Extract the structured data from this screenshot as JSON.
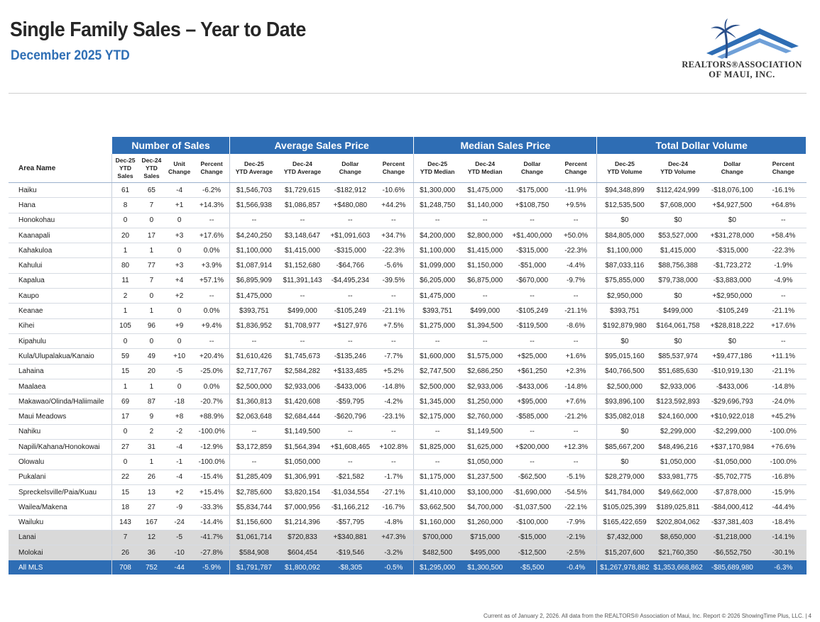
{
  "header": {
    "title": "Single Family Sales – Year to Date",
    "subtitle": "December 2025 YTD"
  },
  "logo": {
    "line1": "REALTORS®ASSOCIATION",
    "line2": "OF MAUI, INC.",
    "colors": {
      "roof": "#2e6db4",
      "palm": "#2a4f8a"
    }
  },
  "table": {
    "groups": [
      "Number of Sales",
      "Average Sales Price",
      "Median Sales Price",
      "Total Dollar Volume"
    ],
    "area_header": "Area Name",
    "columns": [
      "Dec-25 YTD Sales",
      "Dec-24 YTD Sales",
      "Unit Change",
      "Percent Change",
      "Dec-25 YTD Average",
      "Dec-24 YTD Average",
      "Dollar Change",
      "Percent Change",
      "Dec-25 YTD Median",
      "Dec-24 YTD Median",
      "Dollar Change",
      "Percent Change",
      "Dec-25 YTD Volume",
      "Dec-24 YTD Volume",
      "Dollar Change",
      "Percent Change"
    ],
    "rows": [
      {
        "area": "Haiku",
        "cells": [
          "61",
          "65",
          "-4",
          "-6.2%",
          "$1,546,703",
          "$1,729,615",
          "-$182,912",
          "-10.6%",
          "$1,300,000",
          "$1,475,000",
          "-$175,000",
          "-11.9%",
          "$94,348,899",
          "$112,424,999",
          "-$18,076,100",
          "-16.1%"
        ]
      },
      {
        "area": "Hana",
        "cells": [
          "8",
          "7",
          "+1",
          "+14.3%",
          "$1,566,938",
          "$1,086,857",
          "+$480,080",
          "+44.2%",
          "$1,248,750",
          "$1,140,000",
          "+$108,750",
          "+9.5%",
          "$12,535,500",
          "$7,608,000",
          "+$4,927,500",
          "+64.8%"
        ]
      },
      {
        "area": "Honokohau",
        "cells": [
          "0",
          "0",
          "0",
          "--",
          "--",
          "--",
          "--",
          "--",
          "--",
          "--",
          "--",
          "--",
          "$0",
          "$0",
          "$0",
          "--"
        ]
      },
      {
        "area": "Kaanapali",
        "cells": [
          "20",
          "17",
          "+3",
          "+17.6%",
          "$4,240,250",
          "$3,148,647",
          "+$1,091,603",
          "+34.7%",
          "$4,200,000",
          "$2,800,000",
          "+$1,400,000",
          "+50.0%",
          "$84,805,000",
          "$53,527,000",
          "+$31,278,000",
          "+58.4%"
        ]
      },
      {
        "area": "Kahakuloa",
        "cells": [
          "1",
          "1",
          "0",
          "0.0%",
          "$1,100,000",
          "$1,415,000",
          "-$315,000",
          "-22.3%",
          "$1,100,000",
          "$1,415,000",
          "-$315,000",
          "-22.3%",
          "$1,100,000",
          "$1,415,000",
          "-$315,000",
          "-22.3%"
        ]
      },
      {
        "area": "Kahului",
        "cells": [
          "80",
          "77",
          "+3",
          "+3.9%",
          "$1,087,914",
          "$1,152,680",
          "-$64,766",
          "-5.6%",
          "$1,099,000",
          "$1,150,000",
          "-$51,000",
          "-4.4%",
          "$87,033,116",
          "$88,756,388",
          "-$1,723,272",
          "-1.9%"
        ]
      },
      {
        "area": "Kapalua",
        "cells": [
          "11",
          "7",
          "+4",
          "+57.1%",
          "$6,895,909",
          "$11,391,143",
          "-$4,495,234",
          "-39.5%",
          "$6,205,000",
          "$6,875,000",
          "-$670,000",
          "-9.7%",
          "$75,855,000",
          "$79,738,000",
          "-$3,883,000",
          "-4.9%"
        ]
      },
      {
        "area": "Kaupo",
        "cells": [
          "2",
          "0",
          "+2",
          "--",
          "$1,475,000",
          "--",
          "--",
          "--",
          "$1,475,000",
          "--",
          "--",
          "--",
          "$2,950,000",
          "$0",
          "+$2,950,000",
          "--"
        ]
      },
      {
        "area": "Keanae",
        "cells": [
          "1",
          "1",
          "0",
          "0.0%",
          "$393,751",
          "$499,000",
          "-$105,249",
          "-21.1%",
          "$393,751",
          "$499,000",
          "-$105,249",
          "-21.1%",
          "$393,751",
          "$499,000",
          "-$105,249",
          "-21.1%"
        ]
      },
      {
        "area": "Kihei",
        "cells": [
          "105",
          "96",
          "+9",
          "+9.4%",
          "$1,836,952",
          "$1,708,977",
          "+$127,976",
          "+7.5%",
          "$1,275,000",
          "$1,394,500",
          "-$119,500",
          "-8.6%",
          "$192,879,980",
          "$164,061,758",
          "+$28,818,222",
          "+17.6%"
        ]
      },
      {
        "area": "Kipahulu",
        "cells": [
          "0",
          "0",
          "0",
          "--",
          "--",
          "--",
          "--",
          "--",
          "--",
          "--",
          "--",
          "--",
          "$0",
          "$0",
          "$0",
          "--"
        ]
      },
      {
        "area": "Kula/Ulupalakua/Kanaio",
        "cells": [
          "59",
          "49",
          "+10",
          "+20.4%",
          "$1,610,426",
          "$1,745,673",
          "-$135,246",
          "-7.7%",
          "$1,600,000",
          "$1,575,000",
          "+$25,000",
          "+1.6%",
          "$95,015,160",
          "$85,537,974",
          "+$9,477,186",
          "+11.1%"
        ]
      },
      {
        "area": "Lahaina",
        "cells": [
          "15",
          "20",
          "-5",
          "-25.0%",
          "$2,717,767",
          "$2,584,282",
          "+$133,485",
          "+5.2%",
          "$2,747,500",
          "$2,686,250",
          "+$61,250",
          "+2.3%",
          "$40,766,500",
          "$51,685,630",
          "-$10,919,130",
          "-21.1%"
        ]
      },
      {
        "area": "Maalaea",
        "cells": [
          "1",
          "1",
          "0",
          "0.0%",
          "$2,500,000",
          "$2,933,006",
          "-$433,006",
          "-14.8%",
          "$2,500,000",
          "$2,933,006",
          "-$433,006",
          "-14.8%",
          "$2,500,000",
          "$2,933,006",
          "-$433,006",
          "-14.8%"
        ]
      },
      {
        "area": "Makawao/Olinda/Haliimaile",
        "cells": [
          "69",
          "87",
          "-18",
          "-20.7%",
          "$1,360,813",
          "$1,420,608",
          "-$59,795",
          "-4.2%",
          "$1,345,000",
          "$1,250,000",
          "+$95,000",
          "+7.6%",
          "$93,896,100",
          "$123,592,893",
          "-$29,696,793",
          "-24.0%"
        ]
      },
      {
        "area": "Maui Meadows",
        "cells": [
          "17",
          "9",
          "+8",
          "+88.9%",
          "$2,063,648",
          "$2,684,444",
          "-$620,796",
          "-23.1%",
          "$2,175,000",
          "$2,760,000",
          "-$585,000",
          "-21.2%",
          "$35,082,018",
          "$24,160,000",
          "+$10,922,018",
          "+45.2%"
        ]
      },
      {
        "area": "Nahiku",
        "cells": [
          "0",
          "2",
          "-2",
          "-100.0%",
          "--",
          "$1,149,500",
          "--",
          "--",
          "--",
          "$1,149,500",
          "--",
          "--",
          "$0",
          "$2,299,000",
          "-$2,299,000",
          "-100.0%"
        ]
      },
      {
        "area": "Napili/Kahana/Honokowai",
        "cells": [
          "27",
          "31",
          "-4",
          "-12.9%",
          "$3,172,859",
          "$1,564,394",
          "+$1,608,465",
          "+102.8%",
          "$1,825,000",
          "$1,625,000",
          "+$200,000",
          "+12.3%",
          "$85,667,200",
          "$48,496,216",
          "+$37,170,984",
          "+76.6%"
        ]
      },
      {
        "area": "Olowalu",
        "cells": [
          "0",
          "1",
          "-1",
          "-100.0%",
          "--",
          "$1,050,000",
          "--",
          "--",
          "--",
          "$1,050,000",
          "--",
          "--",
          "$0",
          "$1,050,000",
          "-$1,050,000",
          "-100.0%"
        ]
      },
      {
        "area": "Pukalani",
        "cells": [
          "22",
          "26",
          "-4",
          "-15.4%",
          "$1,285,409",
          "$1,306,991",
          "-$21,582",
          "-1.7%",
          "$1,175,000",
          "$1,237,500",
          "-$62,500",
          "-5.1%",
          "$28,279,000",
          "$33,981,775",
          "-$5,702,775",
          "-16.8%"
        ]
      },
      {
        "area": "Spreckelsville/Paia/Kuau",
        "cells": [
          "15",
          "13",
          "+2",
          "+15.4%",
          "$2,785,600",
          "$3,820,154",
          "-$1,034,554",
          "-27.1%",
          "$1,410,000",
          "$3,100,000",
          "-$1,690,000",
          "-54.5%",
          "$41,784,000",
          "$49,662,000",
          "-$7,878,000",
          "-15.9%"
        ]
      },
      {
        "area": "Wailea/Makena",
        "cells": [
          "18",
          "27",
          "-9",
          "-33.3%",
          "$5,834,744",
          "$7,000,956",
          "-$1,166,212",
          "-16.7%",
          "$3,662,500",
          "$4,700,000",
          "-$1,037,500",
          "-22.1%",
          "$105,025,399",
          "$189,025,811",
          "-$84,000,412",
          "-44.4%"
        ]
      },
      {
        "area": "Wailuku",
        "cells": [
          "143",
          "167",
          "-24",
          "-14.4%",
          "$1,156,600",
          "$1,214,396",
          "-$57,795",
          "-4.8%",
          "$1,160,000",
          "$1,260,000",
          "-$100,000",
          "-7.9%",
          "$165,422,659",
          "$202,804,062",
          "-$37,381,403",
          "-18.4%"
        ]
      },
      {
        "area": "Lanai",
        "style": "gray",
        "cells": [
          "7",
          "12",
          "-5",
          "-41.7%",
          "$1,061,714",
          "$720,833",
          "+$340,881",
          "+47.3%",
          "$700,000",
          "$715,000",
          "-$15,000",
          "-2.1%",
          "$7,432,000",
          "$8,650,000",
          "-$1,218,000",
          "-14.1%"
        ]
      },
      {
        "area": "Molokai",
        "style": "gray",
        "cells": [
          "26",
          "36",
          "-10",
          "-27.8%",
          "$584,908",
          "$604,454",
          "-$19,546",
          "-3.2%",
          "$482,500",
          "$495,000",
          "-$12,500",
          "-2.5%",
          "$15,207,600",
          "$21,760,350",
          "-$6,552,750",
          "-30.1%"
        ]
      },
      {
        "area": "All MLS",
        "style": "total",
        "cells": [
          "708",
          "752",
          "-44",
          "-5.9%",
          "$1,791,787",
          "$1,800,092",
          "-$8,305",
          "-0.5%",
          "$1,295,000",
          "$1,300,500",
          "-$5,500",
          "-0.4%",
          "$1,267,978,882",
          "$1,353,668,862",
          "-$85,689,980",
          "-6.3%"
        ]
      }
    ]
  },
  "footer": "Current as of January 2, 2026. All data from the REALTORS® Association of Maui, Inc. Report © 2026 ShowingTime Plus, LLC.  |  4",
  "colors": {
    "header_blue": "#2e6db4",
    "subtitle_blue": "#2f6fb5",
    "gray_row": "#d9d9d9"
  }
}
